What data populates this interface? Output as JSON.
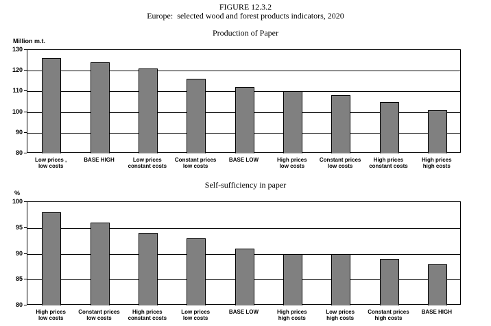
{
  "header": {
    "figure_label": "FIGURE 12.3.2",
    "subtitle": "Europe:  selected wood and forest products indicators, 2020"
  },
  "colors": {
    "bar_fill": "#808080",
    "bar_border": "#000000",
    "axis": "#000000",
    "background": "#ffffff"
  },
  "chart_data": [
    {
      "type": "bar",
      "title": "Production of Paper",
      "ylabel": "Million m.t.",
      "xlabel": "",
      "ylim": [
        80,
        130
      ],
      "yticks": [
        130,
        120,
        110,
        100,
        90,
        80
      ],
      "grid": true,
      "legend": false,
      "categories": [
        "Low prices ,\nlow costs",
        "BASE HIGH",
        "Low prices\nconstant costs",
        "Constant prices\nlow costs",
        "BASE LOW",
        "High prices\nlow costs",
        "Constant prices\nlow costs",
        "High prices\nconstant costs",
        "High prices\nhigh costs"
      ],
      "values": [
        126,
        124,
        121,
        116,
        112,
        110,
        108,
        105,
        101
      ]
    },
    {
      "type": "bar",
      "title": "Self-sufficiency in paper",
      "ylabel": "%",
      "xlabel": "",
      "ylim": [
        80,
        100
      ],
      "yticks": [
        100,
        95,
        90,
        85,
        80
      ],
      "grid": true,
      "legend": false,
      "categories": [
        "High prices\nlow costs",
        "Constant prices\nlow costs",
        "High prices\nconstant costs",
        "Low prices\nlow costs",
        "BASE LOW",
        "High prices\nhigh costs",
        "Low prices\nhigh costs",
        "Constant prices\nhigh costs",
        "BASE HIGH"
      ],
      "values": [
        98,
        96,
        94,
        93,
        91,
        90,
        90,
        89,
        88
      ]
    }
  ]
}
